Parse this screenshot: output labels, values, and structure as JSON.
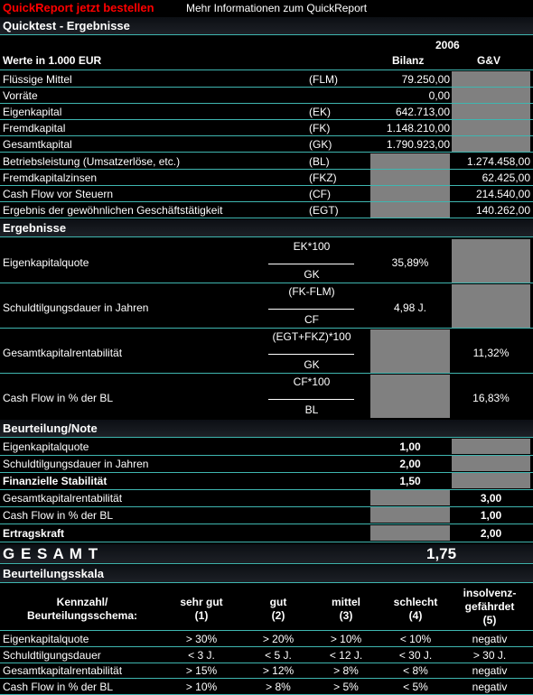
{
  "header": {
    "order_link": "QuickReport jetzt bestellen",
    "info_link": "Mehr Informationen zum QuickReport"
  },
  "quicktest": {
    "title": "Quicktest - Ergebnisse",
    "year": "2006",
    "col_label": "Werte in 1.000 EUR",
    "col_bilanz": "Bilanz",
    "col_guv": "G&V",
    "rows": [
      {
        "label": "Flüssige Mittel",
        "abbr": "(FLM)",
        "bilanz": "79.250,00",
        "guv": ""
      },
      {
        "label": "Vorräte",
        "abbr": "",
        "bilanz": "0,00",
        "guv": ""
      },
      {
        "label": "Eigenkapital",
        "abbr": "(EK)",
        "bilanz": "642.713,00",
        "guv": ""
      },
      {
        "label": "Fremdkapital",
        "abbr": "(FK)",
        "bilanz": "1.148.210,00",
        "guv": ""
      },
      {
        "label": "Gesamtkapital",
        "abbr": "(GK)",
        "bilanz": "1.790.923,00",
        "guv": ""
      },
      {
        "label": "Betriebsleistung (Umsatzerlöse, etc.)",
        "abbr": "(BL)",
        "bilanz": "",
        "guv": "1.274.458,00"
      },
      {
        "label": "Fremdkapitalzinsen",
        "abbr": "(FKZ)",
        "bilanz": "",
        "guv": "62.425,00"
      },
      {
        "label": "Cash Flow vor Steuern",
        "abbr": "(CF)",
        "bilanz": "",
        "guv": "214.540,00"
      },
      {
        "label": "Ergebnis der gewöhnlichen Geschäftstätigkeit",
        "abbr": "(EGT)",
        "bilanz": "",
        "guv": "140.262,00"
      }
    ]
  },
  "ergebnisse": {
    "title": "Ergebnisse",
    "rows": [
      {
        "label": "Eigenkapitalquote",
        "num": "EK*100",
        "den": "GK",
        "bilanz": "35,89%",
        "guv": ""
      },
      {
        "label": "Schuldtilgungsdauer in Jahren",
        "num": "(FK-FLM)",
        "den": "CF",
        "bilanz": "4,98 J.",
        "guv": ""
      },
      {
        "label": "Gesamtkapitalrentabilität",
        "num": "(EGT+FKZ)*100",
        "den": "GK",
        "bilanz": "",
        "guv": "11,32%"
      },
      {
        "label": "Cash Flow in % der BL",
        "num": "CF*100",
        "den": "BL",
        "bilanz": "",
        "guv": "16,83%"
      }
    ]
  },
  "beurteilung": {
    "title": "Beurteilung/Note",
    "r1": {
      "label": "Eigenkapitalquote",
      "value": "1,00"
    },
    "r2": {
      "label": "Schuldtilgungsdauer in Jahren",
      "value": "2,00"
    },
    "r3": {
      "label": "Finanzielle Stabilität",
      "value": "1,50"
    },
    "r4": {
      "label": "Gesamtkapitalrentabilität",
      "value": "3,00"
    },
    "r5": {
      "label": "Cash Flow in % der BL",
      "value": "1,00"
    },
    "r6": {
      "label": "Ertragskraft",
      "value": "2,00"
    },
    "gesamt_label": "G E S A M T",
    "gesamt_value": "1,75"
  },
  "skala": {
    "title": "Beurteilungsskala",
    "head_label_1": "Kennzahl/",
    "head_label_2": "Beurteilungsschema:",
    "cols": [
      {
        "l1": "sehr gut",
        "l2": "(1)",
        "l3": ""
      },
      {
        "l1": "gut",
        "l2": "(2)",
        "l3": ""
      },
      {
        "l1": "mittel",
        "l2": "(3)",
        "l3": ""
      },
      {
        "l1": "schlecht",
        "l2": "(4)",
        "l3": ""
      },
      {
        "l1": "insolvenz-",
        "l2": "gefährdet",
        "l3": "(5)"
      }
    ],
    "rows": [
      {
        "label": "Eigenkapitalquote",
        "v": [
          "> 30%",
          "> 20%",
          "> 10%",
          "< 10%",
          "negativ"
        ]
      },
      {
        "label": "Schuldtilgungsdauer",
        "v": [
          "< 3 J.",
          "< 5 J.",
          "< 12 J.",
          "< 30 J.",
          "> 30 J."
        ]
      },
      {
        "label": "Gesamtkapitalrentabilität",
        "v": [
          "> 15%",
          "> 12%",
          "> 8%",
          "< 8%",
          "negativ"
        ]
      },
      {
        "label": "Cash Flow in % der BL",
        "v": [
          "> 10%",
          "> 8%",
          "> 5%",
          "< 5%",
          "negativ"
        ]
      }
    ]
  },
  "colors": {
    "accent_line": "#3fb6b0",
    "order_link": "#ff0000",
    "gray_cell": "#808080"
  }
}
